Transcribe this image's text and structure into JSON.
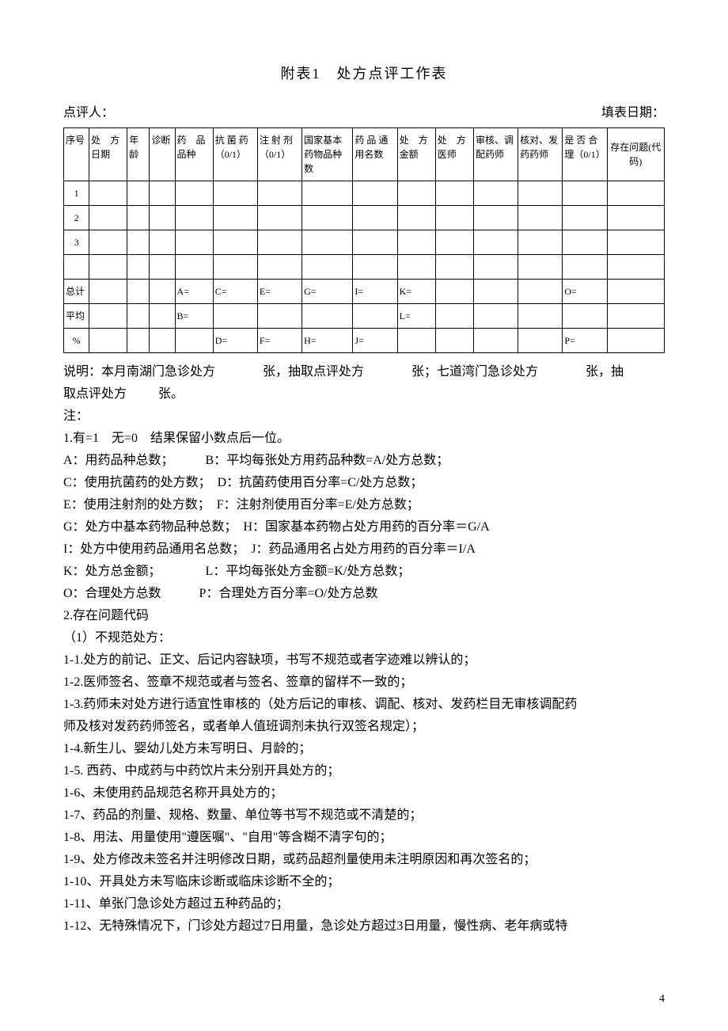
{
  "title": "附表1　处方点评工作表",
  "header": {
    "reviewer_label": "点评人：",
    "date_label": "填表日期："
  },
  "table": {
    "columns": [
      "序号",
      "处　方日期",
      "年龄",
      "诊断",
      "药　品品种",
      "抗 菌 药（0/1）",
      "注 射 剂（0/1）",
      "国家基本药物品种数",
      "药 品 通用名数",
      "处　方金额",
      "处　方医师",
      "审核、调配药师",
      "核对、发药药师",
      "是 否 合 理（0/1）",
      "存在问题(代码)"
    ],
    "data_rows": [
      "1",
      "2",
      "3",
      ""
    ],
    "total_row": {
      "label": "总计",
      "c4": "A=",
      "c5": "C=",
      "c6": "E=",
      "c7": "G=",
      "c8": "I=",
      "c9": "K=",
      "c13": "O="
    },
    "avg_row": {
      "label": "平均",
      "c4": "B=",
      "c9": "L="
    },
    "pct_row": {
      "label": "%",
      "c5": "D=",
      "c6": "F=",
      "c7": "H=",
      "c8": "J=",
      "c13": "P="
    }
  },
  "notes": {
    "l0a": "说明：本月南湖门急诊处方",
    "l0b": "张，抽取点评处方",
    "l0c": "张；七道湾门急诊处方",
    "l0d": "张，抽",
    "l1a": "取点评处方",
    "l1b": "张。",
    "l2": "注：",
    "l3": "1.有=1　无=0　结果保留小数点后一位。",
    "l4": "A：用药品种总数；　　　B：平均每张处方用药品种数=A/处方总数；",
    "l5": "C：使用抗菌药的处方数；　D：抗菌药使用百分率=C/处方总数；",
    "l6": "E：使用注射剂的处方数；　F：注射剂使用百分率=E/处方总数；",
    "l7": "G：处方中基本药物品种总数；　H：国家基本药物占处方用药的百分率＝G/A",
    "l8": "I：处方中使用药品通用名总数；　J：药品通用名占处方用药的百分率＝I/A",
    "l9": "K：处方总金额；　　　　L：平均每张处方金额=K/处方总数；",
    "l10": "O：合理处方总数　　　P：合理处方百分率=O/处方总数",
    "l11": "2.存在问题代码",
    "l12": "（1）不规范处方：",
    "l13": "1-1.处方的前记、正文、后记内容缺项，书写不规范或者字迹难以辨认的；",
    "l14": "1-2.医师签名、签章不规范或者与签名、签章的留样不一致的；",
    "l15": "1-3.药师未对处方进行适宜性审核的（处方后记的审核、调配、核对、发药栏目无审核调配药",
    "l16": "师及核对发药药师签名，或者单人值班调剂未执行双签名规定）；",
    "l17": "1-4.新生儿、婴幼儿处方未写明日、月龄的；",
    "l18": "1-5. 西药、中成药与中药饮片未分别开具处方的；",
    "l19": "1-6、未使用药品规范名称开具处方的；",
    "l20": "1-7、药品的剂量、规格、数量、单位等书写不规范或不清楚的；",
    "l21": "1-8、用法、用量使用\"遵医嘱\"、\"自用\"等含糊不清字句的；",
    "l22": "1-9、处方修改未签名并注明修改日期，或药品超剂量使用未注明原因和再次签名的；",
    "l23": "1-10、开具处方未写临床诊断或临床诊断不全的；",
    "l24": "1-11、单张门急诊处方超过五种药品的；",
    "l25": "1-12、无特殊情况下，门诊处方超过7日用量，急诊处方超过3日用量，慢性病、老年病或特"
  },
  "page_number": "4"
}
